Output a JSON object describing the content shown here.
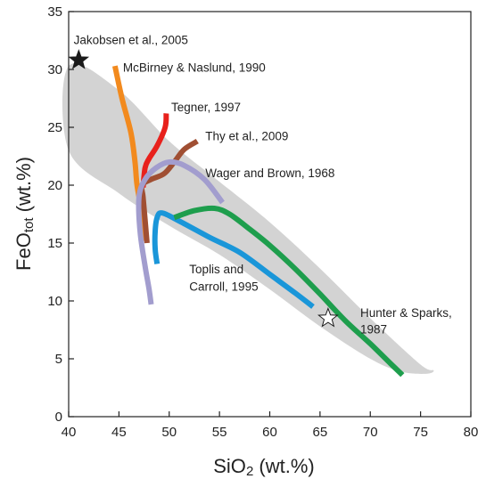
{
  "chart_data": {
    "type": "line",
    "title": "",
    "xlabel": {
      "main": "SiO",
      "sub": "2",
      "rest": " (wt.%)"
    },
    "ylabel": {
      "main": "FeO",
      "sub": "tot",
      "rest": " (wt.%)"
    },
    "xlim": [
      40,
      80
    ],
    "ylim": [
      0,
      35
    ],
    "xticks": [
      40,
      45,
      50,
      55,
      60,
      65,
      70,
      75,
      80
    ],
    "yticks": [
      0,
      5,
      10,
      15,
      20,
      25,
      30,
      35
    ],
    "grid": false,
    "legend": "none",
    "field": {
      "color": "#d3d3d3",
      "points": [
        [
          40,
          30.3
        ],
        [
          45,
          28.2
        ],
        [
          50,
          23.8
        ],
        [
          55,
          20.3
        ],
        [
          60,
          16.8
        ],
        [
          65,
          12.8
        ],
        [
          70,
          8.5
        ],
        [
          75,
          4.5
        ],
        [
          76.3,
          4.0
        ],
        [
          75.5,
          3.7
        ],
        [
          73,
          3.9
        ],
        [
          70,
          5.0
        ],
        [
          65,
          7.8
        ],
        [
          60,
          11.0
        ],
        [
          55,
          14.0
        ],
        [
          50,
          16.5
        ],
        [
          45,
          19.3
        ],
        [
          40,
          23.0
        ]
      ]
    },
    "series": [
      {
        "name": "McBirney & Naslund, 1990",
        "color": "#f28a1e",
        "points": [
          [
            44.6,
            30.3
          ],
          [
            45.3,
            27.5
          ],
          [
            46.2,
            24.5
          ],
          [
            46.6,
            22.0
          ],
          [
            46.8,
            20.0
          ],
          [
            47.2,
            18.0
          ],
          [
            47.5,
            16.0
          ],
          [
            47.6,
            15.2
          ]
        ]
      },
      {
        "name": "Tegner, 1997",
        "color": "#e8211c",
        "points": [
          [
            49.7,
            26.2
          ],
          [
            49.6,
            25.0
          ],
          [
            48.8,
            23.4
          ],
          [
            48.0,
            22.3
          ],
          [
            47.6,
            21.5
          ],
          [
            47.4,
            19.8
          ]
        ]
      },
      {
        "name": "Thy et al., 2009",
        "color": "#a04f33",
        "points": [
          [
            52.8,
            23.8
          ],
          [
            51.5,
            23.1
          ],
          [
            50.5,
            22.0
          ],
          [
            49.5,
            21.0
          ],
          [
            48.2,
            20.5
          ],
          [
            47.3,
            20.0
          ],
          [
            47.4,
            19.0
          ],
          [
            47.6,
            17.0
          ],
          [
            47.8,
            15.0
          ]
        ]
      },
      {
        "name": "Wager and Brown, 1968",
        "color": "#a29dce",
        "points": [
          [
            55.3,
            18.5
          ],
          [
            53.5,
            20.5
          ],
          [
            51.5,
            21.7
          ],
          [
            50.0,
            22.0
          ],
          [
            48.7,
            21.5
          ],
          [
            47.6,
            20.5
          ],
          [
            47.0,
            19.0
          ],
          [
            47.1,
            16.0
          ],
          [
            47.6,
            13.0
          ],
          [
            48.0,
            11.0
          ],
          [
            48.2,
            9.7
          ]
        ]
      },
      {
        "name": "Toplis and Carroll, 1995",
        "color": "#1a96d9",
        "points": [
          [
            48.8,
            13.2
          ],
          [
            48.6,
            14.5
          ],
          [
            48.6,
            16.0
          ],
          [
            48.8,
            17.2
          ],
          [
            49.3,
            17.6
          ],
          [
            51.0,
            16.9
          ],
          [
            54.0,
            15.5
          ],
          [
            57.0,
            14.2
          ],
          [
            60.0,
            12.3
          ],
          [
            62.5,
            10.7
          ],
          [
            64.3,
            9.5
          ]
        ]
      },
      {
        "name": "Hunter & Sparks, 1987",
        "color": "#1e9e4d",
        "points": [
          [
            50.5,
            17.2
          ],
          [
            52.5,
            17.8
          ],
          [
            54.5,
            18.0
          ],
          [
            56.0,
            17.5
          ],
          [
            58.0,
            16.2
          ],
          [
            60.0,
            14.8
          ],
          [
            62.5,
            12.8
          ],
          [
            65.0,
            10.6
          ],
          [
            67.5,
            8.3
          ],
          [
            70.0,
            6.3
          ],
          [
            72.0,
            4.6
          ],
          [
            73.2,
            3.6
          ]
        ]
      }
    ],
    "markers": [
      {
        "label": "Jakobsen et al., 2005",
        "x": 41,
        "y": 30.8,
        "fill": "#1a1a1a"
      },
      {
        "label": "",
        "x": 65.8,
        "y": 8.5,
        "fill": "#ffffff"
      }
    ],
    "annotations": [
      {
        "text": "Jakobsen et al., 2005",
        "x": 40.5,
        "y": 32.2
      },
      {
        "text": "McBirney & Naslund, 1990",
        "x": 45.4,
        "y": 29.8
      },
      {
        "text": "Tegner, 1997",
        "x": 50.2,
        "y": 26.4
      },
      {
        "text": "Thy et al., 2009",
        "x": 53.6,
        "y": 23.9
      },
      {
        "text": "Wager and Brown, 1968",
        "x": 53.6,
        "y": 20.7
      },
      {
        "text": "Toplis and",
        "x": 52.0,
        "y": 12.4
      },
      {
        "text": "Carroll, 1995",
        "x": 52.0,
        "y": 10.9
      },
      {
        "text": "Hunter & Sparks,",
        "x": 69.0,
        "y": 8.6
      },
      {
        "text": "1987",
        "x": 69.0,
        "y": 7.2
      }
    ]
  }
}
